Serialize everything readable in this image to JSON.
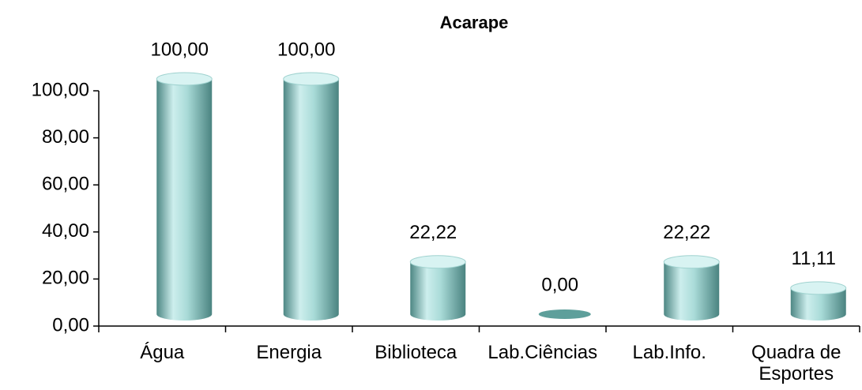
{
  "chart_data": {
    "type": "bar",
    "title": "Acarape",
    "categories": [
      "Água",
      "Energia",
      "Biblioteca",
      "Lab.Ciências",
      "Lab.Info.",
      "Quadra de Esportes"
    ],
    "values": [
      100,
      100,
      22.22,
      0,
      22.22,
      11.11
    ],
    "value_labels": [
      "100,00",
      "100,00",
      "22,22",
      "0,00",
      "22,22",
      "11,11"
    ],
    "color": "#8fc9c6",
    "ylim": [
      0,
      100
    ],
    "yticks": [
      {
        "value": 0,
        "label": "0,00"
      },
      {
        "value": 20,
        "label": "20,00"
      },
      {
        "value": 40,
        "label": "40,00"
      },
      {
        "value": 60,
        "label": "60,00"
      },
      {
        "value": 80,
        "label": "80,00"
      },
      {
        "value": 100,
        "label": "100,00"
      }
    ],
    "grid": false
  }
}
